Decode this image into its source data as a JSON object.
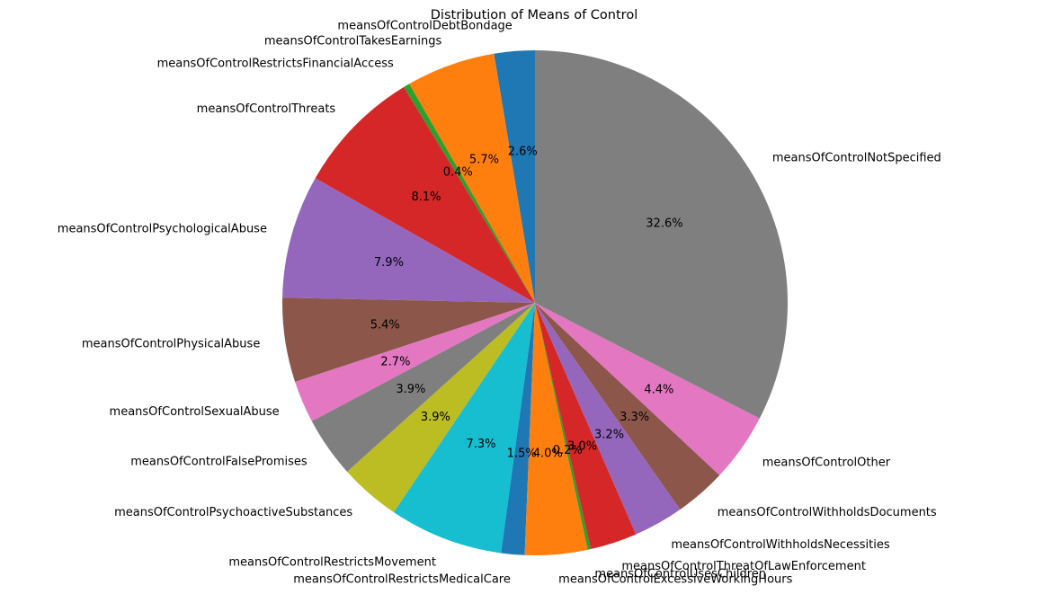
{
  "chart_data": {
    "type": "pie",
    "title": "Distribution of Means of Control",
    "start_angle_deg": 90,
    "direction": "counterclockwise",
    "aspect": "equal",
    "slices": [
      {
        "label": "meansOfControlDebtBondage",
        "value": 2.6,
        "pct_label": "2.6%",
        "color": "#1f77b4"
      },
      {
        "label": "meansOfControlTakesEarnings",
        "value": 5.7,
        "pct_label": "5.7%",
        "color": "#ff7f0e"
      },
      {
        "label": "meansOfControlRestrictsFinancialAccess",
        "value": 0.4,
        "pct_label": "0.4%",
        "color": "#2ca02c"
      },
      {
        "label": "meansOfControlThreats",
        "value": 8.1,
        "pct_label": "8.1%",
        "color": "#d62728"
      },
      {
        "label": "meansOfControlPsychologicalAbuse",
        "value": 7.9,
        "pct_label": "7.9%",
        "color": "#9467bd"
      },
      {
        "label": "meansOfControlPhysicalAbuse",
        "value": 5.4,
        "pct_label": "5.4%",
        "color": "#8c564b"
      },
      {
        "label": "meansOfControlSexualAbuse",
        "value": 2.7,
        "pct_label": "2.7%",
        "color": "#e377c2"
      },
      {
        "label": "meansOfControlFalsePromises",
        "value": 3.9,
        "pct_label": "3.9%",
        "color": "#7f7f7f"
      },
      {
        "label": "meansOfControlPsychoactiveSubstances",
        "value": 3.9,
        "pct_label": "3.9%",
        "color": "#bcbd22"
      },
      {
        "label": "meansOfControlRestrictsMovement",
        "value": 7.3,
        "pct_label": "7.3%",
        "color": "#17becf"
      },
      {
        "label": "meansOfControlRestrictsMedicalCare",
        "value": 1.5,
        "pct_label": "1.5%",
        "color": "#1f77b4"
      },
      {
        "label": "meansOfControlExcessiveWorkingHours",
        "value": 4.0,
        "pct_label": "4.0%",
        "color": "#ff7f0e"
      },
      {
        "label": "meansOfControlUsesChildren",
        "value": 0.2,
        "pct_label": "0.2%",
        "color": "#2ca02c"
      },
      {
        "label": "meansOfControlThreatOfLawEnforcement",
        "value": 3.0,
        "pct_label": "3.0%",
        "color": "#d62728"
      },
      {
        "label": "meansOfControlWithholdsNecessities",
        "value": 3.2,
        "pct_label": "3.2%",
        "color": "#9467bd"
      },
      {
        "label": "meansOfControlWithholdsDocuments",
        "value": 3.3,
        "pct_label": "3.3%",
        "color": "#8c564b"
      },
      {
        "label": "meansOfControlOther",
        "value": 4.4,
        "pct_label": "4.4%",
        "color": "#e377c2"
      },
      {
        "label": "meansOfControlNotSpecified",
        "value": 32.6,
        "pct_label": "32.6%",
        "color": "#7f7f7f"
      }
    ]
  }
}
